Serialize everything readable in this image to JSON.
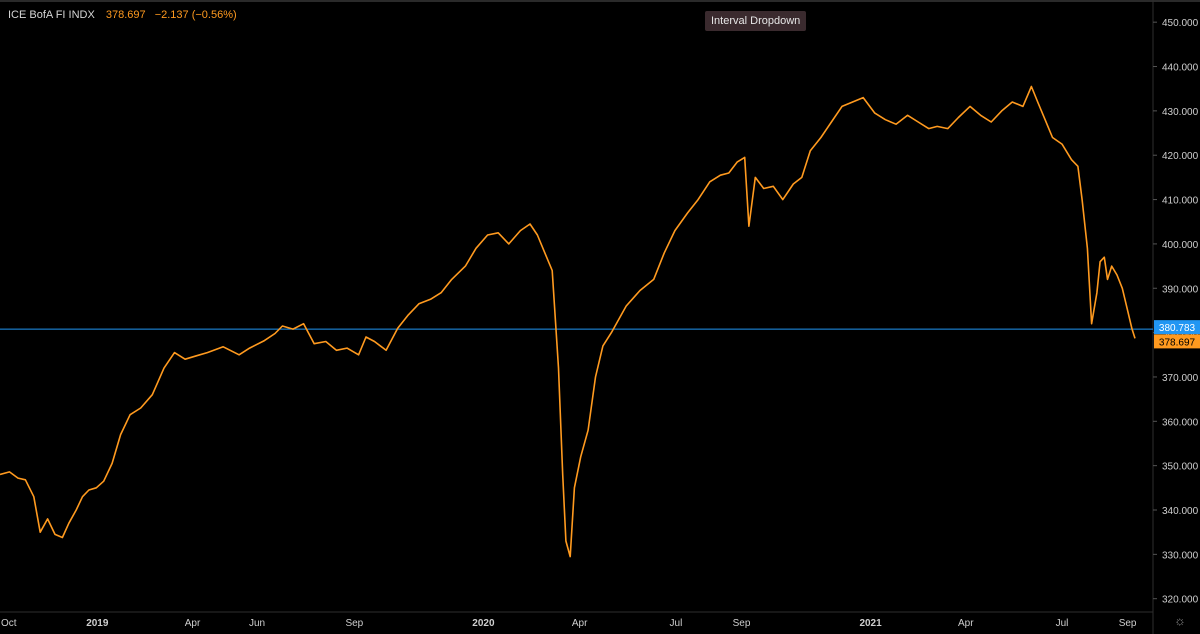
{
  "header": {
    "symbol": "ICE BofA FI INDX",
    "last_price": "378.697",
    "change": "−2.137 (−0.56%)",
    "interval_button": "Interval Dropdown"
  },
  "colors": {
    "background": "#000000",
    "line": "#ff9a1f",
    "crosshair": "#2196f3",
    "price_label_bg": "#ff9a1f",
    "crosshair_label_bg": "#2196f3",
    "axis_text": "#cfcfcf"
  },
  "icons": {
    "settings": "gear-icon"
  },
  "chart_data": {
    "type": "line",
    "title": "",
    "xlabel": "",
    "ylabel": "",
    "ylim": [
      317,
      455
    ],
    "xlim": [
      "2018-10-01",
      "2021-09-25"
    ],
    "grid": false,
    "y_ticks": [
      "320.000",
      "330.000",
      "340.000",
      "350.000",
      "360.000",
      "370.000",
      "380.000",
      "390.000",
      "400.000",
      "410.000",
      "420.000",
      "430.000",
      "440.000",
      "450.000"
    ],
    "x_ticks": [
      {
        "label": "Oct",
        "date": "2018-10-01"
      },
      {
        "label": "2019",
        "date": "2019-01-01"
      },
      {
        "label": "Apr",
        "date": "2019-04-01"
      },
      {
        "label": "Jun",
        "date": "2019-06-01"
      },
      {
        "label": "Sep",
        "date": "2019-09-01"
      },
      {
        "label": "2020",
        "date": "2020-01-01"
      },
      {
        "label": "Apr",
        "date": "2020-04-01"
      },
      {
        "label": "Jul",
        "date": "2020-07-01"
      },
      {
        "label": "Sep",
        "date": "2020-09-01"
      },
      {
        "label": "2021",
        "date": "2021-01-01"
      },
      {
        "label": "Apr",
        "date": "2021-04-01"
      },
      {
        "label": "Jul",
        "date": "2021-07-01"
      },
      {
        "label": "Sep",
        "date": "2021-09-01"
      }
    ],
    "horizontal_line": {
      "value": 380.783,
      "label": "380.783"
    },
    "last_value_label": {
      "value": 378.697,
      "label": "378.697"
    },
    "series": [
      {
        "x": [
          "2018-10-01",
          "2018-10-10",
          "2018-10-18",
          "2018-10-25",
          "2018-11-02",
          "2018-11-08",
          "2018-11-15",
          "2018-11-22",
          "2018-11-29",
          "2018-12-05",
          "2018-12-12",
          "2018-12-18",
          "2018-12-24",
          "2018-12-31",
          "2019-01-07",
          "2019-01-15",
          "2019-01-23",
          "2019-02-01",
          "2019-02-11",
          "2019-02-22",
          "2019-03-05",
          "2019-03-15",
          "2019-03-25",
          "2019-04-05",
          "2019-04-15",
          "2019-04-30",
          "2019-05-15",
          "2019-05-25",
          "2019-06-08",
          "2019-06-18",
          "2019-06-25",
          "2019-07-05",
          "2019-07-15",
          "2019-07-25",
          "2019-08-05",
          "2019-08-15",
          "2019-08-25",
          "2019-09-05",
          "2019-09-12",
          "2019-09-20",
          "2019-10-01",
          "2019-10-12",
          "2019-10-22",
          "2019-11-01",
          "2019-11-12",
          "2019-11-22",
          "2019-12-02",
          "2019-12-15",
          "2019-12-25",
          "2020-01-05",
          "2020-01-15",
          "2020-01-25",
          "2020-02-05",
          "2020-02-14",
          "2020-02-21",
          "2020-02-28",
          "2020-03-06",
          "2020-03-12",
          "2020-03-16",
          "2020-03-19",
          "2020-03-23",
          "2020-03-27",
          "2020-04-02",
          "2020-04-09",
          "2020-04-16",
          "2020-04-23",
          "2020-05-01",
          "2020-05-15",
          "2020-05-28",
          "2020-06-10",
          "2020-06-20",
          "2020-06-30",
          "2020-07-12",
          "2020-07-22",
          "2020-08-02",
          "2020-08-12",
          "2020-08-20",
          "2020-08-28",
          "2020-09-04",
          "2020-09-08",
          "2020-09-14",
          "2020-09-22",
          "2020-10-01",
          "2020-10-10",
          "2020-10-20",
          "2020-10-28",
          "2020-11-05",
          "2020-11-15",
          "2020-11-25",
          "2020-12-05",
          "2020-12-15",
          "2020-12-25",
          "2021-01-05",
          "2021-01-15",
          "2021-01-25",
          "2021-02-05",
          "2021-02-15",
          "2021-02-25",
          "2021-03-05",
          "2021-03-15",
          "2021-03-25",
          "2021-04-05",
          "2021-04-15",
          "2021-04-25",
          "2021-05-05",
          "2021-05-15",
          "2021-05-25",
          "2021-06-02",
          "2021-06-08",
          "2021-06-15",
          "2021-06-22",
          "2021-07-01",
          "2021-07-10",
          "2021-07-16",
          "2021-07-20",
          "2021-07-25",
          "2021-07-29",
          "2021-08-03",
          "2021-08-06",
          "2021-08-10",
          "2021-08-13",
          "2021-08-17",
          "2021-08-22",
          "2021-08-27",
          "2021-09-01",
          "2021-09-05",
          "2021-09-08"
        ],
        "values": [
          348.0,
          348.6,
          347.2,
          346.8,
          343.0,
          335.0,
          338.0,
          334.5,
          333.8,
          337.0,
          340.0,
          343.0,
          344.5,
          345.0,
          346.5,
          350.5,
          357.0,
          361.5,
          363.0,
          366.0,
          372.0,
          375.5,
          374.0,
          374.8,
          375.5,
          376.8,
          375.0,
          376.5,
          378.2,
          379.8,
          381.5,
          380.8,
          382.0,
          377.5,
          378.0,
          376.0,
          376.5,
          375.0,
          379.0,
          378.0,
          376.0,
          381.0,
          384.0,
          386.5,
          387.5,
          389.0,
          392.0,
          395.0,
          399.0,
          402.0,
          402.5,
          400.0,
          403.0,
          404.5,
          402.0,
          398.0,
          394.0,
          372.0,
          348.0,
          333.0,
          329.5,
          345.0,
          352.0,
          358.0,
          370.0,
          377.0,
          380.0,
          386.0,
          389.5,
          392.0,
          398.0,
          403.0,
          407.0,
          410.0,
          414.0,
          415.5,
          416.0,
          418.5,
          419.5,
          404.0,
          415.0,
          412.5,
          413.0,
          410.0,
          413.5,
          415.0,
          421.0,
          424.0,
          427.5,
          431.0,
          432.0,
          433.0,
          429.5,
          428.0,
          427.0,
          429.0,
          427.5,
          426.0,
          426.5,
          426.0,
          428.5,
          431.0,
          429.0,
          427.5,
          430.0,
          432.0,
          431.0,
          435.5,
          432.0,
          428.0,
          424.0,
          422.5,
          419.0,
          417.5,
          410.0,
          399.0,
          382.0,
          389.0,
          396.0,
          397.0,
          392.0,
          395.0,
          393.0,
          390.0,
          385.0,
          381.0,
          378.697
        ]
      }
    ]
  }
}
